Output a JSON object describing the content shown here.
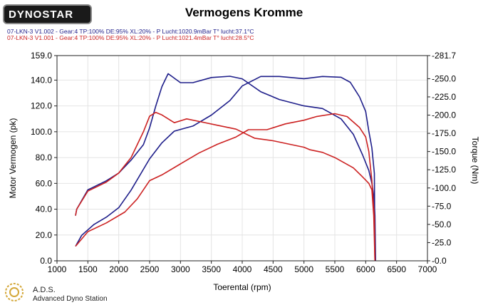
{
  "logo": {
    "text": "DYNOSTAR"
  },
  "chart_data": {
    "type": "line",
    "title": "Vermogens Kromme",
    "legend": [
      {
        "text": "07-LKN-3 V1.002 - Gear:4 TP:100% DE:95% XL:20%   - P Lucht:1020.9mBar T° lucht:37.1°C",
        "color": "#1e1e8a"
      },
      {
        "text": "07-LKN-3 V1.001 - Gear:4 TP:100% DE:95% XL:20%   - P Lucht:1021.4mBar T° lucht:28.5°C",
        "color": "#cc2222"
      }
    ],
    "xlabel": "Toerental (rpm)",
    "ylabel_left": "Motor Vermogen (pk)",
    "ylabel_right": "Torque (Nm)",
    "xlim": [
      1000,
      7000
    ],
    "ylim_left": [
      0,
      159
    ],
    "ylim_right": [
      0,
      281.7
    ],
    "x_ticks": [
      "1000",
      "1500",
      "2000",
      "2500",
      "3000",
      "3500",
      "4000",
      "4500",
      "5000",
      "5500",
      "6000",
      "6500",
      "7000"
    ],
    "x_tick_values": [
      1000,
      1500,
      2000,
      2500,
      3000,
      3500,
      4000,
      4500,
      5000,
      5500,
      6000,
      6500,
      7000
    ],
    "y_left_ticks": [
      "0.0",
      "20.0",
      "40.0",
      "60.0",
      "80.0",
      "100.0",
      "120.0",
      "140.0",
      "159.0"
    ],
    "y_left_tick_values": [
      0,
      20,
      40,
      60,
      80,
      100,
      120,
      140,
      159
    ],
    "y_right_ticks": [
      "-0.0",
      "-25.0",
      "-50.0",
      "-75.0",
      "-100.0",
      "-125.0",
      "-150.0",
      "-175.0",
      "-200.0",
      "-225.0",
      "-250.0",
      "-281.7"
    ],
    "y_right_tick_values": [
      0,
      25,
      50,
      75,
      100,
      125,
      150,
      175,
      200,
      225,
      250,
      281.7
    ],
    "grid": true,
    "series": [
      {
        "name": "07-LKN-3 V1.002",
        "measure": "power",
        "axis": "left",
        "color": "#1e1e8a",
        "x": [
          1300,
          1320,
          1500,
          1800,
          2000,
          2200,
          2400,
          2500,
          2600,
          2700,
          2800,
          3000,
          3200,
          3500,
          3800,
          4000,
          4300,
          4600,
          5000,
          5300,
          5600,
          5800,
          5950,
          6050,
          6100,
          6130,
          6150,
          6160
        ],
        "y": [
          35,
          40,
          55,
          62,
          68,
          78,
          90,
          103,
          120,
          135,
          145,
          138,
          138,
          142,
          143,
          141,
          131,
          125,
          120,
          118,
          110,
          98,
          82,
          70,
          60,
          50,
          35,
          0
        ]
      },
      {
        "name": "07-LKN-3 V1.002",
        "measure": "torque",
        "axis": "right",
        "color": "#1e1e8a",
        "x": [
          1300,
          1400,
          1600,
          1800,
          2000,
          2200,
          2500,
          2700,
          2900,
          3200,
          3500,
          3800,
          4000,
          4300,
          4600,
          5000,
          5300,
          5600,
          5750,
          5900,
          6000,
          6050,
          6100,
          6140,
          6150
        ],
        "y": [
          20,
          35,
          50,
          60,
          73,
          97,
          140,
          162,
          178,
          185,
          200,
          220,
          240,
          253,
          253,
          250,
          253,
          252,
          245,
          225,
          205,
          178,
          155,
          120,
          0
        ]
      },
      {
        "name": "07-LKN-3 V1.001",
        "measure": "power",
        "axis": "left",
        "color": "#cc2222",
        "x": [
          1300,
          1320,
          1500,
          1800,
          2000,
          2200,
          2400,
          2500,
          2600,
          2700,
          2900,
          3100,
          3300,
          3600,
          3900,
          4200,
          4500,
          4800,
          5000,
          5100,
          5300,
          5500,
          5800,
          5950,
          6050,
          6100,
          6130,
          6150
        ],
        "y": [
          35,
          40,
          54,
          61,
          68,
          80,
          100,
          112,
          115,
          113,
          107,
          110,
          108,
          105,
          102,
          95,
          93,
          90,
          88,
          86,
          84,
          80,
          72,
          65,
          60,
          55,
          35,
          0
        ]
      },
      {
        "name": "07-LKN-3 V1.001",
        "measure": "torque",
        "axis": "right",
        "color": "#cc2222",
        "x": [
          1300,
          1500,
          1800,
          2100,
          2300,
          2500,
          2700,
          3000,
          3300,
          3600,
          3900,
          4100,
          4400,
          4700,
          5000,
          5200,
          5500,
          5700,
          5900,
          6000,
          6050,
          6100,
          6140,
          6150
        ],
        "y": [
          20,
          40,
          52,
          67,
          85,
          110,
          118,
          133,
          148,
          160,
          170,
          180,
          180,
          188,
          193,
          198,
          202,
          198,
          183,
          170,
          150,
          110,
          60,
          0
        ]
      }
    ]
  },
  "footer": {
    "ads_title": "A.D.S.",
    "ads_subtitle": "Advanced Dyno Station"
  }
}
